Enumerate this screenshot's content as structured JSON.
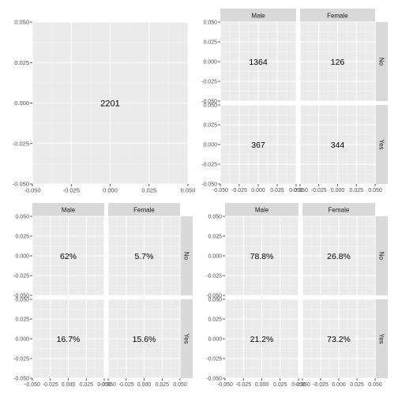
{
  "chart_data": [
    {
      "type": "table",
      "facet": "none",
      "xlim": [
        -0.05,
        0.05
      ],
      "ylim": [
        -0.05,
        0.05
      ],
      "x_ticks": [
        "-0.050",
        "-0.025",
        "0.000",
        "0.025",
        "0.050"
      ],
      "y_ticks": [
        "0.050",
        "0.025",
        "0.000",
        "-0.025",
        "-0.050"
      ],
      "cells": [
        {
          "label": "2201",
          "x": 0,
          "y": 0
        }
      ]
    },
    {
      "type": "table",
      "facet": "grid",
      "col_labels": [
        "Male",
        "Female"
      ],
      "row_labels": [
        "No",
        "Yes"
      ],
      "xlim": [
        -0.05,
        0.05
      ],
      "ylim": [
        -0.05,
        0.05
      ],
      "x_ticks": [
        "-0.050",
        "-0.025",
        "0.000",
        "0.025",
        "0.050"
      ],
      "y_ticks": [
        "0.050",
        "0.025",
        "0.000",
        "-0.025",
        "-0.050"
      ],
      "cells": [
        {
          "row": "No",
          "col": "Male",
          "label": "1364",
          "x": 0,
          "y": 0
        },
        {
          "row": "No",
          "col": "Female",
          "label": "126",
          "x": 0,
          "y": 0
        },
        {
          "row": "Yes",
          "col": "Male",
          "label": "367",
          "x": 0,
          "y": 0
        },
        {
          "row": "Yes",
          "col": "Female",
          "label": "344",
          "x": 0,
          "y": 0
        }
      ]
    },
    {
      "type": "table",
      "facet": "grid",
      "col_labels": [
        "Male",
        "Female"
      ],
      "row_labels": [
        "No",
        "Yes"
      ],
      "xlim": [
        -0.05,
        0.05
      ],
      "ylim": [
        -0.05,
        0.05
      ],
      "x_ticks": [
        "-0.050",
        "-0.025",
        "0.000",
        "0.025",
        "0.050"
      ],
      "y_ticks": [
        "0.050",
        "0.025",
        "0.000",
        "-0.025",
        "-0.050"
      ],
      "cells": [
        {
          "row": "No",
          "col": "Male",
          "label": "62%",
          "x": 0,
          "y": 0
        },
        {
          "row": "No",
          "col": "Female",
          "label": "5.7%",
          "x": 0,
          "y": 0
        },
        {
          "row": "Yes",
          "col": "Male",
          "label": "16.7%",
          "x": 0,
          "y": 0
        },
        {
          "row": "Yes",
          "col": "Female",
          "label": "15.6%",
          "x": 0,
          "y": 0
        }
      ]
    },
    {
      "type": "table",
      "facet": "grid",
      "col_labels": [
        "Male",
        "Female"
      ],
      "row_labels": [
        "No",
        "Yes"
      ],
      "xlim": [
        -0.05,
        0.05
      ],
      "ylim": [
        -0.05,
        0.05
      ],
      "x_ticks": [
        "-0.050",
        "-0.025",
        "0.000",
        "0.025",
        "0.050"
      ],
      "y_ticks": [
        "0.050",
        "0.025",
        "0.000",
        "-0.025",
        "-0.050"
      ],
      "cells": [
        {
          "row": "No",
          "col": "Male",
          "label": "78.8%",
          "x": 0,
          "y": 0
        },
        {
          "row": "No",
          "col": "Female",
          "label": "26.8%",
          "x": 0,
          "y": 0
        },
        {
          "row": "Yes",
          "col": "Male",
          "label": "21.2%",
          "x": 0,
          "y": 0
        },
        {
          "row": "Yes",
          "col": "Female",
          "label": "73.2%",
          "x": 0,
          "y": 0
        }
      ]
    }
  ],
  "colors": {
    "background": "#ffffff",
    "panel": "#ebebeb",
    "grid_major": "#ffffff",
    "grid_minor": "#f5f5f5",
    "strip": "#d9d9d9",
    "text": "#000000",
    "axis_text": "#4d4d4d",
    "tick": "#333333"
  }
}
